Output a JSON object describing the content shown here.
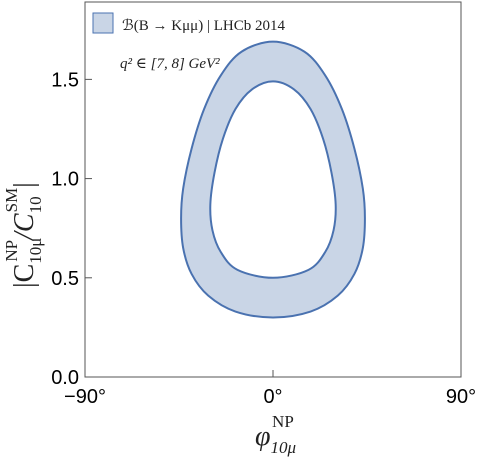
{
  "chart_data": {
    "type": "region",
    "series": [
      {
        "name": "ℬ(B → Kμμ) | LHCb 2014",
        "color": "#c9d5e6",
        "edge_color": "#4a72b0",
        "boundaries": [
          {
            "x": [
              0,
              15,
              25,
              33,
              39,
              43,
              44,
              43,
              39,
              31,
              18,
              0,
              -18,
              -31,
              -39,
              -43,
              -44,
              -43,
              -39,
              -33,
              -25,
              -15
            ],
            "y": [
              1.69,
              1.64,
              1.52,
              1.35,
              1.15,
              0.95,
              0.8,
              0.65,
              0.52,
              0.41,
              0.33,
              0.3,
              0.33,
              0.41,
              0.52,
              0.65,
              0.8,
              0.95,
              1.15,
              1.35,
              1.52,
              1.64
            ]
          },
          {
            "x": [
              0,
              10,
              18,
              24,
              28,
              30,
              29,
              25,
              17,
              0,
              -17,
              -25,
              -29,
              -30,
              -28,
              -24,
              -18,
              -10
            ],
            "y": [
              1.49,
              1.45,
              1.35,
              1.2,
              1.03,
              0.87,
              0.74,
              0.63,
              0.54,
              0.5,
              0.54,
              0.63,
              0.74,
              0.87,
              1.03,
              1.2,
              1.35,
              1.45
            ]
          }
        ]
      }
    ],
    "annotation": "q² ∈ [7, 8] GeV²",
    "xlabel": {
      "base": "φ",
      "sub": "10μ",
      "sup": "NP"
    },
    "ylabel": {
      "open": "|C",
      "sub1": "10μ",
      "sup1": "NP",
      "mid": "/C",
      "sub2": "10",
      "sup2": "SM",
      "close": "|"
    },
    "xlim": [
      -90,
      90
    ],
    "ylim": [
      0,
      1.89
    ],
    "xticks": [
      {
        "value": -90,
        "label": "−90°"
      },
      {
        "value": 0,
        "label": "0°"
      },
      {
        "value": 90,
        "label": "90°"
      }
    ],
    "yticks": [
      {
        "value": 0,
        "label": "0.0"
      },
      0.5,
      {
        "value": 1,
        "label": "1.0"
      },
      1.5
    ]
  }
}
